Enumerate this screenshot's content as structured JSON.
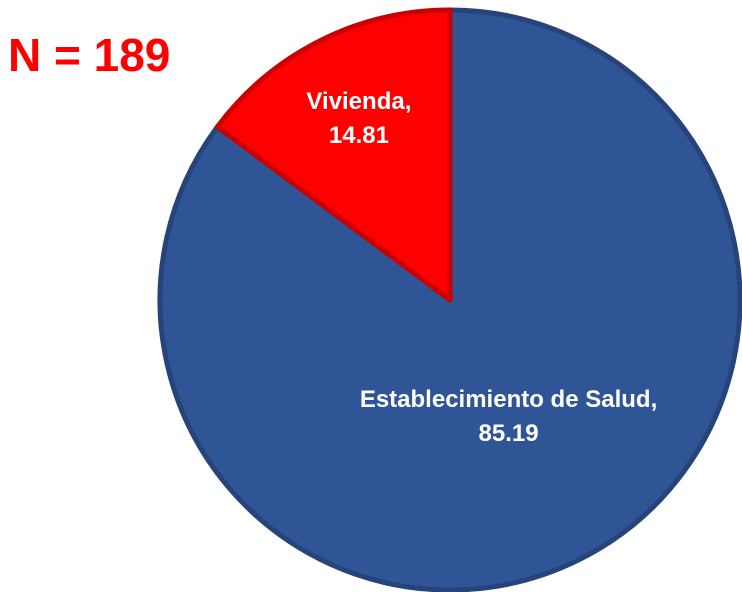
{
  "chart_data": {
    "type": "pie",
    "title": "N = 189",
    "categories": [
      "Establecimiento de Salud",
      "Vivienda"
    ],
    "values": [
      85.19,
      14.81
    ],
    "colors": [
      "#2f5597",
      "#ff0000"
    ],
    "label_separator": ","
  }
}
